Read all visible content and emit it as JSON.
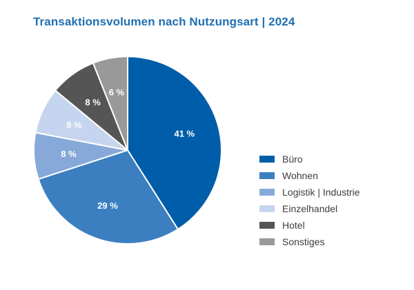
{
  "chart_data": {
    "type": "pie",
    "title": "Transaktionsvolumen nach Nutzungsart | 2024",
    "unit": "%",
    "slices": [
      {
        "label": "Büro",
        "value": 41,
        "display": "41 %",
        "color": "#005da9"
      },
      {
        "label": "Wohnen",
        "value": 29,
        "display": "29 %",
        "color": "#3b7fc0"
      },
      {
        "label": "Logistik | Industrie",
        "value": 8,
        "display": "8 %",
        "color": "#86a9d9"
      },
      {
        "label": "Einzelhandel",
        "value": 8,
        "display": "8 %",
        "color": "#c6d5ef"
      },
      {
        "label": "Hotel",
        "value": 8,
        "display": "8 %",
        "color": "#555555"
      },
      {
        "label": "Sonstiges",
        "value": 6,
        "display": "6 %",
        "color": "#999999"
      }
    ],
    "start_angle": "12 o'clock",
    "direction": "clockwise",
    "legend_position": "right",
    "label_color": "#ffffff"
  }
}
